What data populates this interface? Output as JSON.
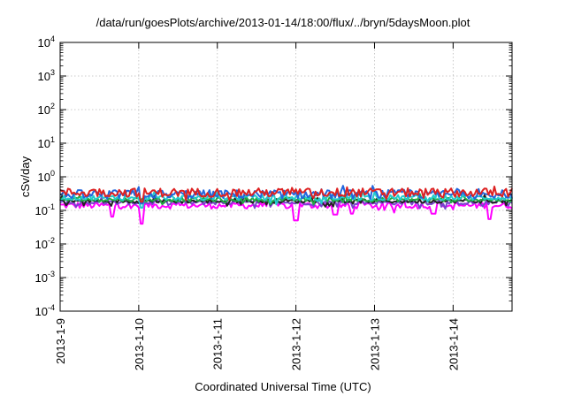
{
  "chart_data": {
    "type": "line",
    "title": "/data/run/goesPlots/archive/2013-01-14/18:00/flux/../bryn/5daysMoon.plot",
    "xlabel": "Coordinated Universal Time (UTC)",
    "ylabel": "cSv/day",
    "yscale": "log",
    "ylim": [
      0.0001,
      10000
    ],
    "y_ticks": [
      {
        "value": 0.0001,
        "base": "10",
        "exp": "-4"
      },
      {
        "value": 0.001,
        "base": "10",
        "exp": "-3"
      },
      {
        "value": 0.01,
        "base": "10",
        "exp": "-2"
      },
      {
        "value": 0.1,
        "base": "10",
        "exp": "-1"
      },
      {
        "value": 1,
        "base": "10",
        "exp": "0"
      },
      {
        "value": 10,
        "base": "10",
        "exp": "1"
      },
      {
        "value": 100,
        "base": "10",
        "exp": "2"
      },
      {
        "value": 1000,
        "base": "10",
        "exp": "3"
      },
      {
        "value": 10000,
        "base": "10",
        "exp": "4"
      }
    ],
    "xlim": [
      "2013-01-09T00:00",
      "2013-01-14T18:00"
    ],
    "x_ticks": [
      "2013-1-9",
      "2013-1-10",
      "2013-1-11",
      "2013-1-12",
      "2013-1-13",
      "2013-1-14"
    ],
    "x_tick_dates": [
      "2013-01-09T00:00",
      "2013-01-10T00:00",
      "2013-01-11T00:00",
      "2013-01-12T00:00",
      "2013-01-13T00:00",
      "2013-01-14T00:00"
    ],
    "grid": true,
    "legend": "none",
    "series": [
      {
        "color": "#dd2222",
        "baseline": 0.34,
        "spread": 1.35,
        "dips": [
          {
            "t": "2013-01-10T01:00",
            "value": 0.18
          }
        ]
      },
      {
        "color": "#2266dd",
        "baseline": 0.3,
        "spread": 1.35,
        "dips": [
          {
            "t": "2013-01-10T01:00",
            "value": 0.16
          }
        ]
      },
      {
        "color": "#22cccc",
        "baseline": 0.24,
        "spread": 1.2,
        "dips": [
          {
            "t": "2013-01-10T01:00",
            "value": 0.12
          }
        ]
      },
      {
        "color": "#22aa44",
        "baseline": 0.21,
        "spread": 1.15,
        "dips": []
      },
      {
        "color": "#222222",
        "baseline": 0.19,
        "spread": 1.15,
        "dips": []
      },
      {
        "color": "#7744cc",
        "baseline": 0.17,
        "spread": 1.15,
        "dips": []
      },
      {
        "color": "#ff00ff",
        "baseline": 0.14,
        "spread": 1.25,
        "dips": [
          {
            "t": "2013-01-09T16:00",
            "value": 0.065
          },
          {
            "t": "2013-01-10T01:00",
            "value": 0.04
          },
          {
            "t": "2013-01-12T00:00",
            "value": 0.05
          },
          {
            "t": "2013-01-12T12:00",
            "value": 0.075
          },
          {
            "t": "2013-01-12T17:00",
            "value": 0.08
          },
          {
            "t": "2013-01-13T18:00",
            "value": 0.08
          },
          {
            "t": "2013-01-14T11:00",
            "value": 0.055
          }
        ]
      }
    ]
  }
}
